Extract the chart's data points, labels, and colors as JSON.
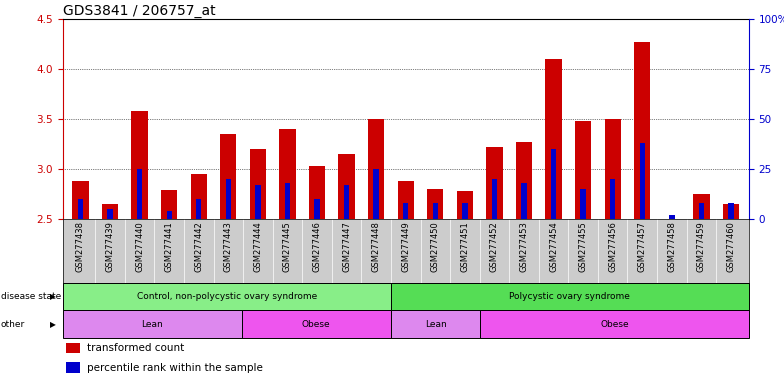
{
  "title": "GDS3841 / 206757_at",
  "samples": [
    "GSM277438",
    "GSM277439",
    "GSM277440",
    "GSM277441",
    "GSM277442",
    "GSM277443",
    "GSM277444",
    "GSM277445",
    "GSM277446",
    "GSM277447",
    "GSM277448",
    "GSM277449",
    "GSM277450",
    "GSM277451",
    "GSM277452",
    "GSM277453",
    "GSM277454",
    "GSM277455",
    "GSM277456",
    "GSM277457",
    "GSM277458",
    "GSM277459",
    "GSM277460"
  ],
  "transformed_count": [
    2.88,
    2.65,
    3.58,
    2.79,
    2.95,
    3.35,
    3.2,
    3.4,
    3.03,
    3.15,
    3.5,
    2.88,
    2.8,
    2.78,
    3.22,
    3.27,
    4.1,
    3.48,
    3.5,
    4.27,
    2.5,
    2.75,
    2.65
  ],
  "percentile_rank": [
    10,
    5,
    25,
    4,
    10,
    20,
    17,
    18,
    10,
    17,
    25,
    8,
    8,
    8,
    20,
    18,
    35,
    15,
    20,
    38,
    2,
    8,
    8
  ],
  "ylim_left": [
    2.5,
    4.5
  ],
  "ylim_right": [
    0,
    100
  ],
  "yticks_left": [
    2.5,
    3.0,
    3.5,
    4.0,
    4.5
  ],
  "yticks_right": [
    0,
    25,
    50,
    75,
    100
  ],
  "ytick_labels_right": [
    "0",
    "25",
    "50",
    "75",
    "100%"
  ],
  "bar_color": "#cc0000",
  "percentile_color": "#0000cc",
  "bar_width": 0.55,
  "blue_bar_width": 0.18,
  "disease_state_groups": [
    {
      "label": "Control, non-polycystic ovary syndrome",
      "start": 0,
      "end": 11,
      "color": "#88ee88"
    },
    {
      "label": "Polycystic ovary syndrome",
      "start": 11,
      "end": 23,
      "color": "#55dd55"
    }
  ],
  "other_groups": [
    {
      "label": "Lean",
      "start": 0,
      "end": 6,
      "color": "#dd88ee"
    },
    {
      "label": "Obese",
      "start": 6,
      "end": 11,
      "color": "#ee55ee"
    },
    {
      "label": "Lean",
      "start": 11,
      "end": 14,
      "color": "#dd88ee"
    },
    {
      "label": "Obese",
      "start": 14,
      "end": 23,
      "color": "#ee55ee"
    }
  ],
  "disease_state_label": "disease state",
  "other_label": "other",
  "legend_items": [
    {
      "label": "transformed count",
      "color": "#cc0000"
    },
    {
      "label": "percentile rank within the sample",
      "color": "#0000cc"
    }
  ],
  "tick_color_left": "#cc0000",
  "tick_color_right": "#0000cc",
  "title_fontsize": 10,
  "tick_fontsize": 7.5,
  "xticklabel_fontsize": 6.0,
  "band_label_fontsize": 6.5,
  "legend_fontsize": 7.5,
  "grid_dotted_color": "#000000",
  "xtick_bg_color": "#cccccc"
}
